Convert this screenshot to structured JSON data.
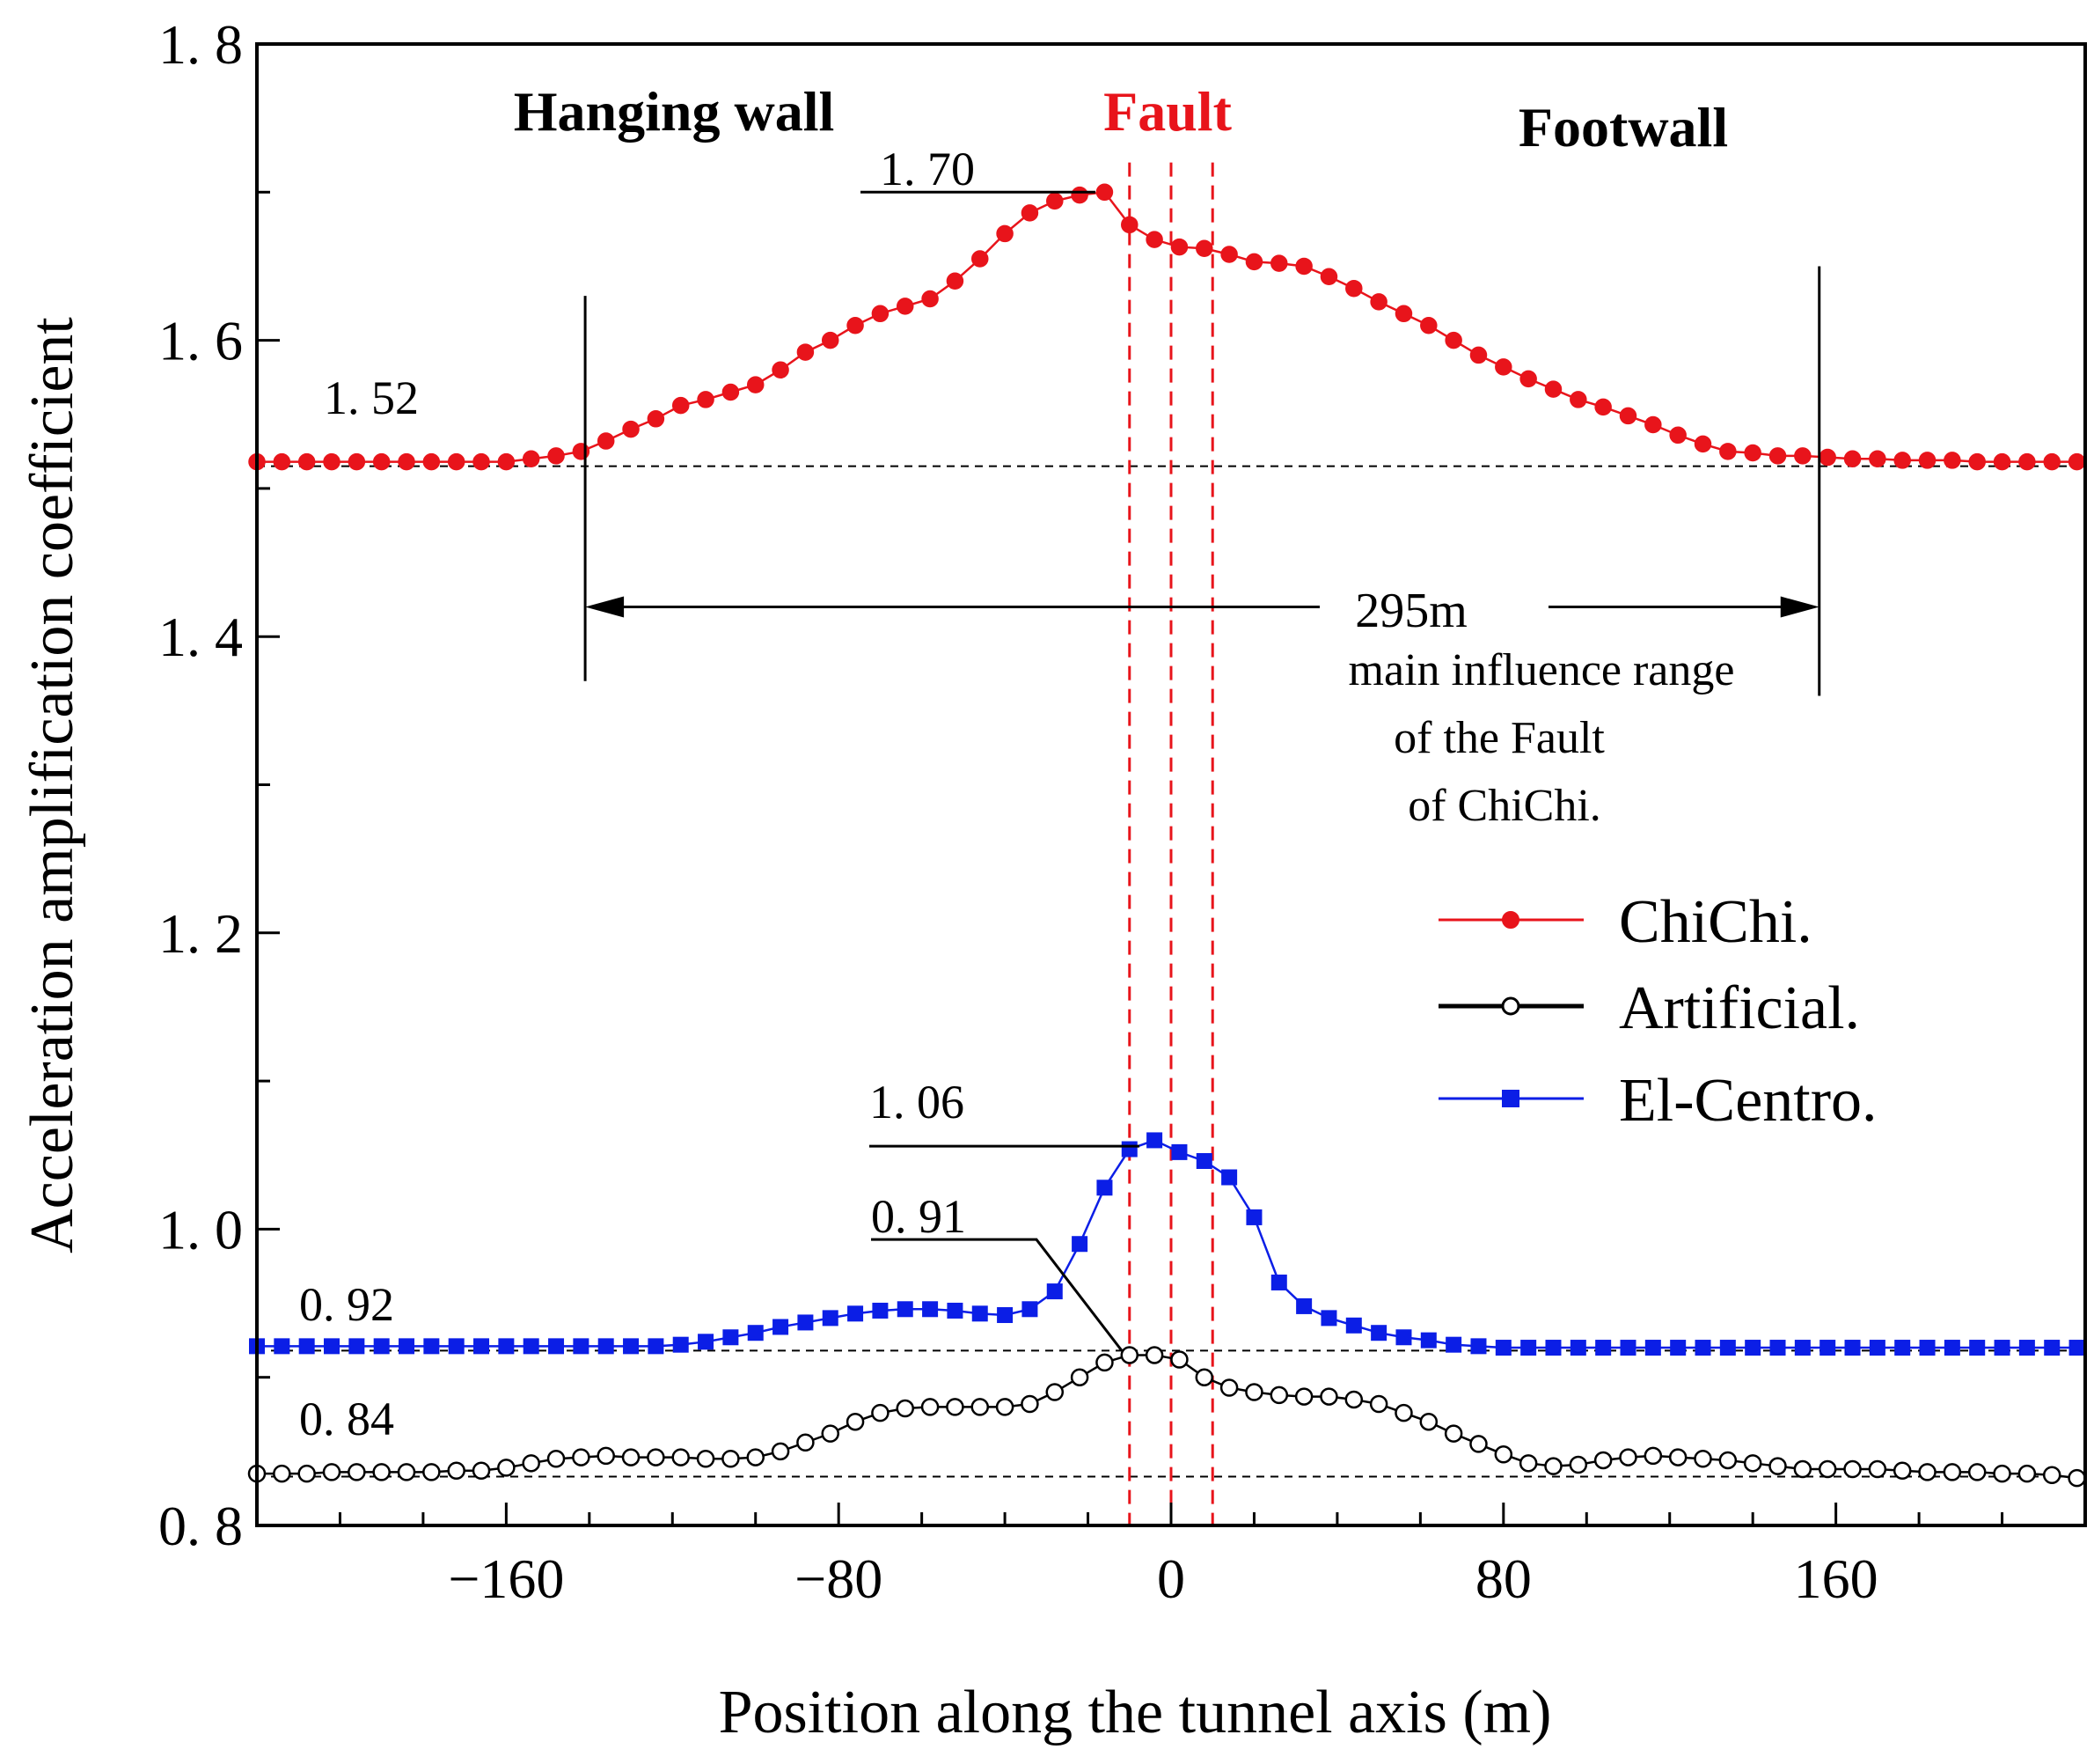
{
  "chart_data": {
    "type": "line",
    "title": "",
    "xlabel": "Position along the tunnel axis (m)",
    "ylabel": "Acceleration amplification coefficient",
    "xlim": [
      -220,
      220
    ],
    "ylim": [
      0.8,
      1.8
    ],
    "x_ticks": [
      -160,
      -80,
      0,
      80,
      160
    ],
    "x_tick_labels": [
      "−160",
      "−80",
      "0",
      "80",
      "160"
    ],
    "x_minor_step": 20,
    "y_ticks": [
      0.8,
      1.0,
      1.2,
      1.4,
      1.6,
      1.8
    ],
    "y_tick_labels": [
      "0. 8",
      "1. 0",
      "1. 2",
      "1. 4",
      "1. 6",
      "1. 8"
    ],
    "y_minor_step": 0.1,
    "colors": {
      "chichi": "#e8141b",
      "artificial": "#000000",
      "elcentro": "#0b1ee6",
      "fault": "#e8141b"
    },
    "region_labels": {
      "hanging_wall": "Hanging wall",
      "fault": "Fault",
      "footwall": "Footwall"
    },
    "fault_lines_x": [
      -10,
      0,
      10
    ],
    "baselines": [
      1.515,
      0.918,
      0.833
    ],
    "annotations": {
      "chichi_peak": {
        "label": "1. 70",
        "value": 1.7
      },
      "chichi_base": {
        "label": "1. 52",
        "value": 1.52
      },
      "elcentro_peak": {
        "label": "1. 06",
        "value": 1.06
      },
      "artificial_peak": {
        "label": "0. 91",
        "value": 0.91
      },
      "elcentro_base": {
        "label": "0. 92",
        "value": 0.92
      },
      "artificial_base": {
        "label": "0. 84",
        "value": 0.84
      }
    },
    "range": {
      "label": "295m",
      "from_x": -141,
      "to_x": 156,
      "y": 1.42,
      "text_lines": [
        "main influence range",
        "of the Fault",
        "of ChiChi."
      ]
    },
    "legend_position": "right-center",
    "series": [
      {
        "name": "ChiChi.",
        "marker": "filled-circle",
        "x": [
          -220,
          -214,
          -208,
          -202,
          -196,
          -190,
          -184,
          -178,
          -172,
          -166,
          -160,
          -154,
          -148,
          -142,
          -136,
          -130,
          -124,
          -118,
          -112,
          -106,
          -100,
          -94,
          -88,
          -82,
          -76,
          -70,
          -64,
          -58,
          -52,
          -46,
          -40,
          -34,
          -28,
          -22,
          -16,
          -10,
          -4,
          2,
          8,
          14,
          20,
          26,
          32,
          38,
          44,
          50,
          56,
          62,
          68,
          74,
          80,
          86,
          92,
          98,
          104,
          110,
          116,
          122,
          128,
          134,
          140,
          146,
          152,
          158,
          164,
          170,
          176,
          182,
          188,
          194,
          200,
          206,
          212,
          218
        ],
        "values": [
          1.518,
          1.518,
          1.518,
          1.518,
          1.518,
          1.518,
          1.518,
          1.518,
          1.518,
          1.518,
          1.518,
          1.52,
          1.522,
          1.525,
          1.532,
          1.54,
          1.547,
          1.556,
          1.56,
          1.565,
          1.57,
          1.58,
          1.592,
          1.6,
          1.61,
          1.618,
          1.623,
          1.628,
          1.64,
          1.655,
          1.672,
          1.686,
          1.694,
          1.698,
          1.7,
          1.678,
          1.668,
          1.663,
          1.662,
          1.658,
          1.653,
          1.652,
          1.65,
          1.643,
          1.635,
          1.626,
          1.618,
          1.61,
          1.6,
          1.59,
          1.582,
          1.574,
          1.567,
          1.56,
          1.555,
          1.549,
          1.543,
          1.536,
          1.53,
          1.525,
          1.524,
          1.522,
          1.522,
          1.521,
          1.52,
          1.52,
          1.519,
          1.519,
          1.519,
          1.518,
          1.518,
          1.518,
          1.518,
          1.518
        ]
      },
      {
        "name": "Artificial.",
        "marker": "open-circle",
        "x": [
          -220,
          -214,
          -208,
          -202,
          -196,
          -190,
          -184,
          -178,
          -172,
          -166,
          -160,
          -154,
          -148,
          -142,
          -136,
          -130,
          -124,
          -118,
          -112,
          -106,
          -100,
          -94,
          -88,
          -82,
          -76,
          -70,
          -64,
          -58,
          -52,
          -46,
          -40,
          -34,
          -28,
          -22,
          -16,
          -10,
          -4,
          2,
          8,
          14,
          20,
          26,
          32,
          38,
          44,
          50,
          56,
          62,
          68,
          74,
          80,
          86,
          92,
          98,
          104,
          110,
          116,
          122,
          128,
          134,
          140,
          146,
          152,
          158,
          164,
          170,
          176,
          182,
          188,
          194,
          200,
          206,
          212,
          218
        ],
        "values": [
          0.835,
          0.835,
          0.835,
          0.836,
          0.836,
          0.836,
          0.836,
          0.836,
          0.837,
          0.837,
          0.839,
          0.842,
          0.845,
          0.846,
          0.847,
          0.846,
          0.846,
          0.846,
          0.845,
          0.845,
          0.846,
          0.85,
          0.856,
          0.862,
          0.87,
          0.876,
          0.879,
          0.88,
          0.88,
          0.88,
          0.88,
          0.882,
          0.89,
          0.9,
          0.91,
          0.915,
          0.915,
          0.912,
          0.9,
          0.893,
          0.89,
          0.888,
          0.887,
          0.887,
          0.885,
          0.882,
          0.876,
          0.87,
          0.862,
          0.855,
          0.848,
          0.842,
          0.84,
          0.841,
          0.844,
          0.846,
          0.847,
          0.846,
          0.845,
          0.844,
          0.842,
          0.84,
          0.838,
          0.838,
          0.838,
          0.838,
          0.837,
          0.836,
          0.836,
          0.836,
          0.835,
          0.835,
          0.834,
          0.832
        ]
      },
      {
        "name": "El-Centro.",
        "marker": "filled-square",
        "x": [
          -220,
          -214,
          -208,
          -202,
          -196,
          -190,
          -184,
          -178,
          -172,
          -166,
          -160,
          -154,
          -148,
          -142,
          -136,
          -130,
          -124,
          -118,
          -112,
          -106,
          -100,
          -94,
          -88,
          -82,
          -76,
          -70,
          -64,
          -58,
          -52,
          -46,
          -40,
          -34,
          -28,
          -22,
          -16,
          -10,
          -4,
          2,
          8,
          14,
          20,
          26,
          32,
          38,
          44,
          50,
          56,
          62,
          68,
          74,
          80,
          86,
          92,
          98,
          104,
          110,
          116,
          122,
          128,
          134,
          140,
          146,
          152,
          158,
          164,
          170,
          176,
          182,
          188,
          194,
          200,
          206,
          212,
          218
        ],
        "values": [
          0.921,
          0.921,
          0.921,
          0.921,
          0.921,
          0.921,
          0.921,
          0.921,
          0.921,
          0.921,
          0.921,
          0.921,
          0.921,
          0.921,
          0.921,
          0.921,
          0.921,
          0.922,
          0.924,
          0.927,
          0.93,
          0.934,
          0.937,
          0.94,
          0.943,
          0.945,
          0.946,
          0.946,
          0.945,
          0.943,
          0.942,
          0.946,
          0.958,
          0.99,
          1.028,
          1.054,
          1.06,
          1.052,
          1.046,
          1.035,
          1.008,
          0.964,
          0.948,
          0.94,
          0.935,
          0.93,
          0.927,
          0.925,
          0.922,
          0.921,
          0.92,
          0.92,
          0.92,
          0.92,
          0.92,
          0.92,
          0.92,
          0.92,
          0.92,
          0.92,
          0.92,
          0.92,
          0.92,
          0.92,
          0.92,
          0.92,
          0.92,
          0.92,
          0.92,
          0.92,
          0.92,
          0.92,
          0.92,
          0.92
        ]
      }
    ]
  }
}
